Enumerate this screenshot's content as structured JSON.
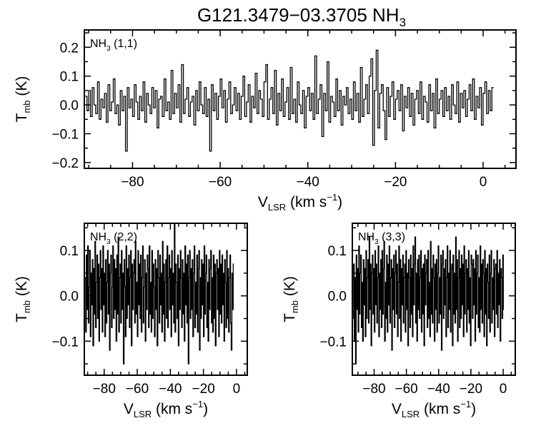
{
  "figure": {
    "title_main": "G121.3479−03.3705 NH",
    "title_sub": "3"
  },
  "chart_data": [
    {
      "type": "line",
      "panel": "NH3 (1,1)",
      "label_main": "NH",
      "label_sub": "3",
      "label_rest": " (1,1)",
      "xlabel_main": "V",
      "xlabel_sub": "LSR",
      "xlabel_rest": " (km s",
      "xlabel_sup": "−1",
      "xlabel_end": ")",
      "ylabel_main": "T",
      "ylabel_sub": "mb",
      "ylabel_rest": " (K)",
      "xlim": [
        -91,
        7.5
      ],
      "ylim": [
        -0.22,
        0.26
      ],
      "xticks": [
        -80,
        -60,
        -40,
        -20,
        0
      ],
      "xtick_labels": [
        "−80",
        "−60",
        "−40",
        "−20",
        "0"
      ],
      "yticks": [
        -0.2,
        -0.1,
        0.0,
        0.1,
        0.2
      ],
      "ytick_labels": [
        "−0.2",
        "−0.1",
        "0.0",
        "0.1",
        "0.2"
      ],
      "grid": false,
      "style": "steps",
      "x_start": -90.8,
      "x_step": 0.4,
      "y": [
        0.03,
        -0.02,
        0.05,
        -0.04,
        0.06,
        0.0,
        -0.03,
        0.08,
        -0.05,
        0.02,
        -0.01,
        0.04,
        -0.06,
        0.07,
        -0.02,
        0.01,
        0.09,
        -0.03,
        0.0,
        -0.07,
        0.05,
        -0.02,
        0.03,
        -0.16,
        0.06,
        -0.01,
        0.02,
        -0.04,
        0.07,
        0.01,
        -0.05,
        0.03,
        -0.02,
        0.08,
        -0.06,
        0.04,
        0.0,
        -0.03,
        0.06,
        -0.01,
        0.05,
        -0.08,
        0.02,
        0.03,
        -0.04,
        0.09,
        -0.02,
        0.01,
        -0.05,
        0.12,
        -0.03,
        0.04,
        -0.01,
        0.07,
        -0.06,
        0.14,
        -0.03,
        0.02,
        0.06,
        -0.04,
        0.01,
        0.03,
        -0.07,
        0.05,
        -0.02,
        0.08,
        0.0,
        -0.03,
        0.06,
        -0.04,
        0.02,
        -0.16,
        0.07,
        -0.02,
        0.04,
        -0.05,
        0.03,
        0.09,
        -0.01,
        0.05,
        -0.06,
        0.02,
        0.08,
        -0.03,
        0.0,
        0.06,
        -0.02,
        0.04,
        -0.05,
        0.03,
        0.1,
        -0.04,
        0.01,
        0.07,
        -0.06,
        0.03,
        -0.01,
        0.11,
        -0.03,
        0.05,
        0.02,
        -0.04,
        0.08,
        0.14,
        -0.05,
        0.02,
        0.06,
        -0.03,
        0.12,
        -0.07,
        0.04,
        -0.02,
        0.09,
        -0.04,
        0.01,
        0.06,
        -0.05,
        0.13,
        -0.03,
        0.02,
        -0.06,
        0.08,
        0.0,
        -0.03,
        0.05,
        -0.08,
        0.03,
        0.06,
        -0.02,
        0.04,
        -0.05,
        0.17,
        -0.03,
        0.02,
        0.07,
        -0.11,
        0.04,
        -0.02,
        0.15,
        -0.06,
        0.03,
        0.01,
        -0.04,
        0.09,
        -0.02,
        0.05,
        -0.07,
        0.03,
        0.0,
        0.06,
        -0.03,
        0.02,
        -0.05,
        0.08,
        -0.02,
        0.04,
        -0.06,
        0.13,
        -0.04,
        0.02,
        0.07,
        -0.03,
        0.1,
        0.16,
        -0.14,
        0.05,
        0.19,
        -0.08,
        0.04,
        0.07,
        -0.02,
        -0.12,
        0.06,
        -0.04,
        0.03,
        0.08,
        -0.05,
        0.02,
        0.05,
        -0.02,
        0.07,
        -0.09,
        0.03,
        -0.01,
        0.06,
        -0.04,
        0.04,
        -0.07,
        0.02,
        0.05,
        -0.03,
        0.08,
        -0.05,
        0.03,
        0.01,
        -0.06,
        0.07,
        -0.02,
        0.04,
        -0.08,
        0.09,
        -0.03,
        0.02,
        0.05,
        -0.04,
        0.06,
        -0.02,
        0.03,
        -0.05,
        0.07,
        0.0,
        -0.03,
        0.08,
        -0.06,
        0.04,
        -0.01,
        0.05,
        -0.04,
        0.02,
        0.07,
        -0.02,
        0.09,
        -0.05,
        0.03,
        -0.01,
        0.06,
        -0.07,
        0.04,
        0.08,
        -0.03,
        0.05,
        -0.02,
        0.06
      ]
    },
    {
      "type": "line",
      "panel": "NH3 (2,2)",
      "label_main": "NH",
      "label_sub": "3",
      "label_rest": " (2,2)",
      "xlabel_main": "V",
      "xlabel_sub": "LSR",
      "xlabel_rest": " (km s",
      "xlabel_sup": "−1",
      "xlabel_end": ")",
      "ylabel_main": "T",
      "ylabel_sub": "mb",
      "ylabel_rest": " (K)",
      "xlim": [
        -92,
        6.5
      ],
      "ylim": [
        -0.175,
        0.16
      ],
      "xticks": [
        -80,
        -60,
        -40,
        -20,
        0
      ],
      "xtick_labels": [
        "−80",
        "−60",
        "−40",
        "−20",
        "0"
      ],
      "yticks": [
        -0.1,
        0.0,
        0.1
      ],
      "ytick_labels": [
        "−0.1",
        "0.0",
        "0.1"
      ],
      "grid": false,
      "style": "steps",
      "x_start": -91.6,
      "x_step": 0.4,
      "y": [
        0.04,
        -0.08,
        0.09,
        -0.03,
        0.11,
        -0.06,
        0.02,
        0.1,
        -0.09,
        0.05,
        -0.02,
        0.08,
        -0.11,
        0.06,
        -0.04,
        0.12,
        -0.07,
        0.03,
        0.09,
        -0.05,
        0.07,
        -0.1,
        0.04,
        0.1,
        -0.03,
        0.06,
        -0.08,
        0.11,
        -0.02,
        0.05,
        -0.09,
        0.08,
        -0.06,
        0.03,
        0.1,
        -0.04,
        0.07,
        -0.12,
        0.05,
        0.09,
        -0.07,
        0.02,
        0.11,
        -0.05,
        0.08,
        -0.03,
        0.06,
        -0.1,
        0.09,
        -0.04,
        0.13,
        -0.08,
        0.04,
        0.07,
        -0.06,
        0.1,
        -0.03,
        0.05,
        -0.15,
        0.08,
        0.02,
        -0.09,
        0.11,
        -0.05,
        0.06,
        -0.02,
        0.09,
        -0.07,
        0.04,
        0.1,
        -0.11,
        0.07,
        -0.03,
        0.05,
        0.08,
        -0.06,
        0.12,
        -0.04,
        0.03,
        -0.09,
        0.1,
        -0.02,
        0.07,
        -0.05,
        0.09,
        -0.08,
        0.04,
        0.11,
        -0.06,
        0.02,
        0.08,
        -0.1,
        0.05,
        -0.03,
        0.09,
        0.06,
        -0.07,
        0.11,
        -0.04,
        0.03,
        -0.08,
        0.1,
        -0.05,
        0.07,
        0.02,
        -0.09,
        0.08,
        -0.03,
        0.06,
        -0.11,
        0.1,
        0.04,
        -0.06,
        0.09,
        -0.02,
        0.05,
        -0.08,
        0.12,
        -0.04,
        0.07,
        -0.1,
        0.03,
        0.08,
        -0.05,
        0.11,
        -0.07,
        0.04,
        0.09,
        -0.03,
        0.06,
        -0.09,
        0.1,
        -0.02,
        0.05,
        -0.06,
        0.16,
        -0.08,
        0.07,
        0.03,
        -0.05,
        0.09,
        -0.11,
        0.06,
        -0.03,
        0.1,
        0.04,
        -0.07,
        0.08,
        -0.04,
        0.05,
        -0.1,
        0.11,
        -0.02,
        0.07,
        -0.06,
        0.09,
        -0.15,
        0.04,
        0.1,
        -0.05,
        0.06,
        -0.03,
        0.08,
        -0.09,
        0.05,
        0.11,
        -0.07,
        0.03,
        -0.04,
        0.09,
        -0.08,
        0.06,
        0.1,
        -0.12,
        0.04,
        -0.05,
        0.08,
        -0.02,
        0.07,
        -0.09,
        0.11,
        -0.04,
        0.05,
        0.09,
        -0.07,
        0.03,
        -0.1,
        0.08,
        -0.03,
        0.06,
        0.1,
        -0.06,
        0.04,
        -0.08,
        0.09,
        -0.05,
        0.07,
        -0.11,
        0.05,
        0.08,
        -0.03,
        0.06,
        -0.09,
        0.1,
        -0.04,
        0.07,
        -0.06,
        0.09,
        -0.02,
        0.05,
        -0.1,
        0.08,
        0.03,
        -0.07,
        0.1,
        -0.05,
        0.06,
        -0.08,
        0.04,
        0.09,
        -0.06,
        -0.12,
        0.05,
        -0.03,
        0.07
      ]
    },
    {
      "type": "line",
      "panel": "NH3 (3,3)",
      "label_main": "NH",
      "label_sub": "3",
      "label_rest": " (3,3)",
      "xlabel_main": "V",
      "xlabel_sub": "LSR",
      "xlabel_rest": " (km s",
      "xlabel_sup": "−1",
      "xlabel_end": ")",
      "ylabel_main": "T",
      "ylabel_sub": "mb",
      "ylabel_rest": " (K)",
      "xlim": [
        -93.5,
        7.5
      ],
      "ylim": [
        -0.175,
        0.16
      ],
      "xticks": [
        -80,
        -60,
        -40,
        -20,
        0
      ],
      "xtick_labels": [
        "−80",
        "−60",
        "−40",
        "−20",
        "0"
      ],
      "yticks": [
        -0.1,
        0.0,
        0.1
      ],
      "ytick_labels": [
        "−0.1",
        "0.0",
        "0.1"
      ],
      "grid": false,
      "style": "steps",
      "x_start": -93.1,
      "x_step": 0.4,
      "y": [
        -0.05,
        0.07,
        -0.1,
        0.04,
        -0.15,
        0.09,
        -0.03,
        0.06,
        -0.08,
        0.11,
        -0.04,
        0.05,
        0.09,
        -0.07,
        0.03,
        -0.1,
        0.08,
        -0.02,
        0.06,
        -0.09,
        0.1,
        -0.05,
        0.04,
        0.08,
        -0.06,
        0.13,
        -0.03,
        0.07,
        -0.11,
        0.05,
        0.09,
        -0.04,
        0.06,
        -0.08,
        0.1,
        -0.02,
        0.07,
        -0.06,
        0.04,
        0.11,
        -0.09,
        0.05,
        -0.03,
        0.08,
        -0.07,
        0.1,
        -0.04,
        0.06,
        0.12,
        -0.1,
        0.03,
        -0.05,
        0.09,
        -0.08,
        0.07,
        -0.02,
        0.11,
        -0.06,
        0.04,
        0.08,
        -0.12,
        0.06,
        -0.03,
        0.09,
        -0.07,
        0.05,
        0.1,
        -0.04,
        0.07,
        -0.09,
        0.03,
        0.11,
        -0.05,
        0.08,
        -0.1,
        0.06,
        -0.02,
        0.09,
        -0.06,
        0.04,
        0.07,
        -0.08,
        0.1,
        -0.03,
        0.05,
        -0.11,
        0.08,
        0.04,
        -0.07,
        0.09,
        -0.04,
        0.06,
        -0.09,
        0.11,
        -0.02,
        0.07,
        0.13,
        -0.06,
        0.05,
        -0.1,
        0.08,
        -0.03,
        0.09,
        -0.05,
        0.04,
        0.1,
        -0.08,
        0.06,
        -0.04,
        0.07,
        -0.11,
        0.09,
        -0.02,
        0.05,
        0.08,
        -0.07,
        0.1,
        -0.05,
        0.03,
        -0.09,
        0.12,
        -0.04,
        0.06,
        -0.06,
        0.09,
        0.04,
        -0.1,
        0.07,
        -0.03,
        0.08,
        -0.08,
        0.05,
        0.11,
        -0.06,
        0.04,
        -0.04,
        0.09,
        -0.12,
        0.07,
        0.1,
        -0.05,
        0.06,
        -0.02,
        0.08,
        -0.09,
        0.04,
        0.11,
        -0.07,
        0.05,
        -0.03,
        0.1,
        -0.08,
        0.06,
        0.07,
        -0.11,
        0.09,
        -0.04,
        0.05,
        -0.06,
        0.13,
        -0.03,
        0.08,
        -0.1,
        0.04,
        0.1,
        -0.07,
        0.06,
        -0.05,
        0.09,
        -0.02,
        0.07,
        -0.09,
        0.11,
        -0.04,
        0.05,
        0.08,
        -0.08,
        0.06,
        -0.03,
        0.1,
        -0.06,
        0.04,
        -0.11,
        0.09,
        0.07,
        -0.05,
        0.08,
        -0.02,
        0.06,
        -0.1,
        0.1,
        -0.04,
        0.05,
        0.09,
        -0.07,
        0.04,
        -0.08,
        0.11,
        -0.03,
        0.07,
        -0.06,
        0.08,
        0.05,
        -0.09,
        0.1,
        -0.04,
        0.06,
        -0.11,
        0.07,
        0.03,
        -0.05,
        0.09,
        -0.08,
        0.05,
        0.1,
        -0.06,
        0.04,
        -0.03,
        0.08,
        -0.09,
        0.06,
        0.07,
        -0.04,
        0.1,
        -0.07,
        0.05,
        -0.02,
        0.08,
        -0.1,
        0.06,
        0.04,
        -0.05,
        0.09,
        -0.03
      ]
    }
  ]
}
